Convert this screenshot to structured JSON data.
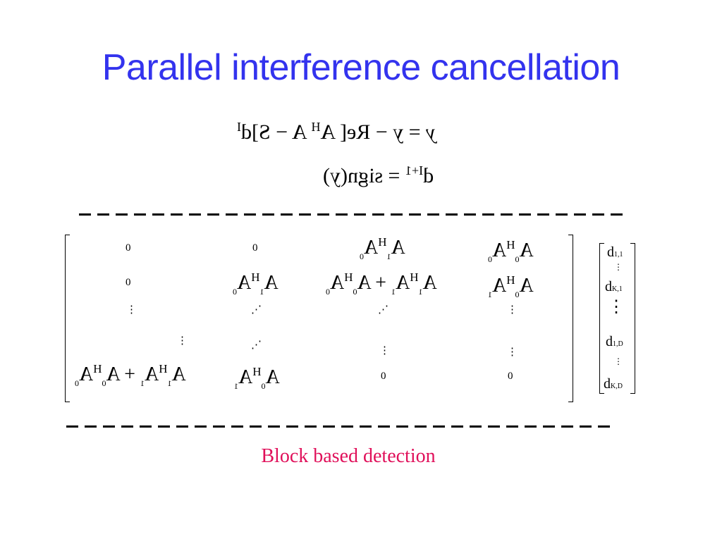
{
  "title": "Parallel interference cancellation",
  "equations": {
    "eq1": {
      "lhs": "y",
      "rhs": "= y − Re[ A",
      "h": "H",
      "mid": "A − S]d",
      "iter": "I"
    },
    "eq2": {
      "d": "d",
      "iter": "I+1",
      "rhs": "= sign(y)"
    }
  },
  "matrix": {
    "zero": "0",
    "vdots": "⋮",
    "ddots": "⋰",
    "r1c3": {
      "a1": "A",
      "s1": "1",
      "h": "H",
      "a2": "A",
      "s2": "0"
    },
    "r1c4": {
      "a1": "A",
      "s1": "0",
      "h": "H",
      "a2": "A",
      "s2": "0"
    },
    "r2c2": {
      "a1": "A",
      "s1": "1",
      "h": "H",
      "a2": "A",
      "s2": "0"
    },
    "r2c3": {
      "a1": "A",
      "s1": "1",
      "h": "H",
      "a2": "A",
      "s2": "1",
      "plus": "+",
      "b1": "A",
      "t1": "0",
      "b2": "A",
      "t2": "0"
    },
    "r2c4": {
      "a1": "A",
      "s1": "0",
      "h": "H",
      "a2": "A",
      "s2": "1"
    },
    "r5c1": {
      "a1": "A",
      "s1": "1",
      "h": "H",
      "a2": "A",
      "s2": "1",
      "plus": "+",
      "b1": "A",
      "t1": "0",
      "b2": "A",
      "t2": "0"
    },
    "r5c2": {
      "a1": "A",
      "s1": "0",
      "h": "H",
      "a2": "A",
      "s2": "1"
    }
  },
  "vector": {
    "d": "d",
    "sub1": "1,1",
    "sub2": "K,1",
    "sub3": "1,D",
    "sub4": "K,D"
  },
  "caption": "Block based detection"
}
